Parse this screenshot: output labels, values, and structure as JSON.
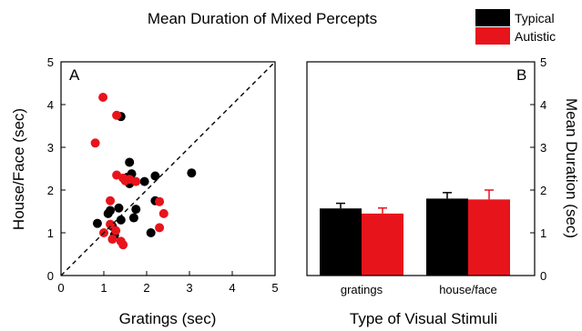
{
  "figure": {
    "title": "Mean Duration of Mixed Percepts",
    "legend": [
      {
        "label": "Typical",
        "color": "#000000"
      },
      {
        "label": "Autistic",
        "color": "#e8141c"
      }
    ]
  },
  "chart_data": [
    {
      "type": "scatter",
      "panel": "A",
      "xlabel": "Gratings (sec)",
      "ylabel": "House/Face (sec)",
      "xlim": [
        0,
        5
      ],
      "ylim": [
        0,
        5
      ],
      "xticks": [
        "0",
        "1",
        "2",
        "3",
        "4",
        "5"
      ],
      "yticks": [
        "0",
        "1",
        "2",
        "3",
        "4",
        "5"
      ],
      "reference_line": "y = x (dashed)",
      "grid": false,
      "series": [
        {
          "name": "Typical",
          "color": "#000000",
          "points": [
            [
              0.85,
              1.22
            ],
            [
              1.1,
              1.45
            ],
            [
              1.15,
              1.52
            ],
            [
              1.2,
              1.15
            ],
            [
              1.25,
              0.95
            ],
            [
              1.35,
              1.58
            ],
            [
              1.4,
              1.3
            ],
            [
              1.4,
              3.72
            ],
            [
              1.55,
              2.3
            ],
            [
              1.6,
              2.65
            ],
            [
              1.6,
              2.15
            ],
            [
              1.65,
              2.38
            ],
            [
              1.7,
              1.35
            ],
            [
              1.75,
              1.55
            ],
            [
              1.95,
              2.2
            ],
            [
              2.1,
              1.0
            ],
            [
              2.2,
              2.33
            ],
            [
              2.2,
              1.75
            ],
            [
              3.05,
              2.4
            ]
          ]
        },
        {
          "name": "Autistic",
          "color": "#e8141c",
          "points": [
            [
              0.8,
              3.1
            ],
            [
              0.98,
              4.17
            ],
            [
              1.0,
              1.0
            ],
            [
              1.15,
              1.75
            ],
            [
              1.15,
              1.2
            ],
            [
              1.2,
              0.85
            ],
            [
              1.28,
              1.05
            ],
            [
              1.3,
              2.35
            ],
            [
              1.4,
              0.8
            ],
            [
              1.45,
              0.72
            ],
            [
              1.45,
              2.28
            ],
            [
              1.5,
              2.22
            ],
            [
              1.6,
              2.25
            ],
            [
              1.75,
              2.2
            ],
            [
              2.3,
              1.73
            ],
            [
              2.3,
              1.12
            ],
            [
              2.4,
              1.45
            ],
            [
              1.3,
              3.75
            ]
          ]
        }
      ]
    },
    {
      "type": "bar",
      "panel": "B",
      "xlabel": "Type of Visual Stimuli",
      "ylabel": "Mean Duration (sec)",
      "ylim": [
        0,
        5
      ],
      "yticks": [
        "0",
        "1",
        "2",
        "3",
        "4",
        "5"
      ],
      "categories": [
        "gratings",
        "house/face"
      ],
      "series": [
        {
          "name": "Typical",
          "color": "#000000",
          "values": [
            1.57,
            1.8
          ],
          "errors": [
            0.12,
            0.14
          ]
        },
        {
          "name": "Autistic",
          "color": "#e8141c",
          "values": [
            1.45,
            1.78
          ],
          "errors": [
            0.13,
            0.22
          ]
        }
      ]
    }
  ]
}
